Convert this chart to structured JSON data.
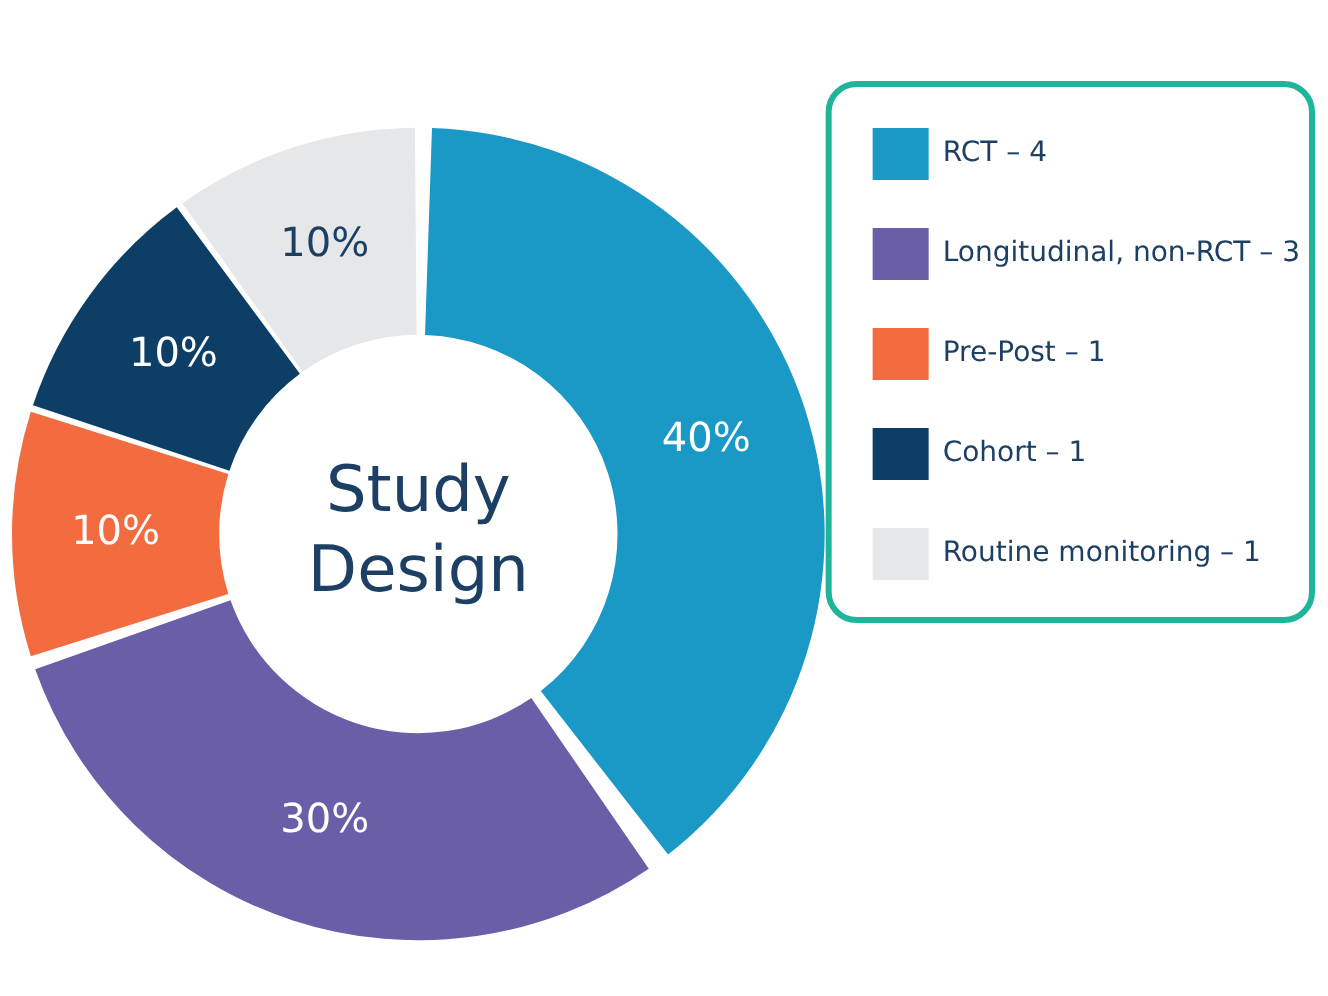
{
  "chart_data": {
    "type": "donut",
    "title": "Study Design",
    "categories": [
      "RCT – 4",
      "Longitudinal, non-RCT – 3",
      "Pre-Post – 1",
      "Cohort – 1",
      "Routine monitoring – 1"
    ],
    "values": [
      40,
      30,
      10,
      10,
      10
    ],
    "colors": [
      "#1a98c6",
      "#6a5ea8",
      "#f26c3f",
      "#0d3f66",
      "#e6e7e9"
    ],
    "value_labels": [
      "40%",
      "30%",
      "10%",
      "10%",
      "10%"
    ],
    "legend": "right"
  }
}
